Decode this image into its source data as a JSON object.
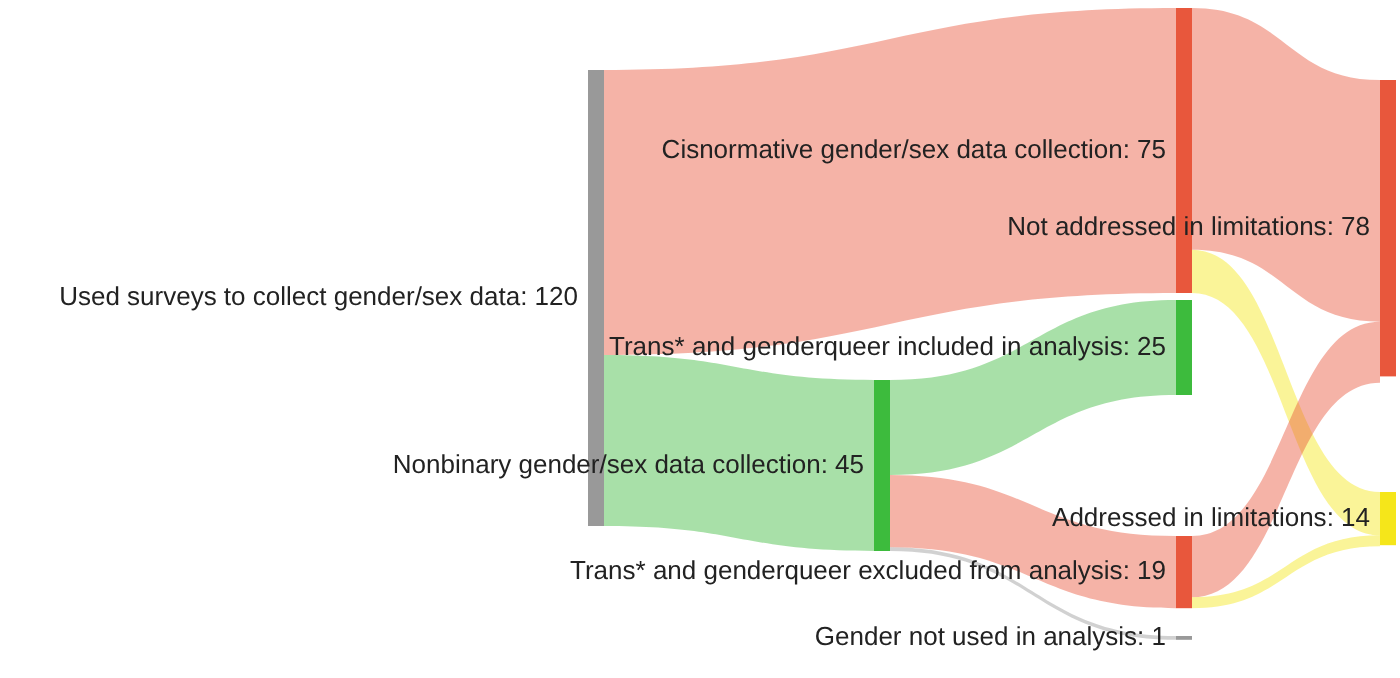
{
  "chart_data": {
    "type": "other",
    "categories": [
      "Used surveys to collect gender/sex data",
      "Cisnormative gender/sex data collection",
      "Nonbinary gender/sex data collection",
      "Trans* and genderqueer included in analysis",
      "Trans* and genderqueer excluded from analysis",
      "Gender not used in analysis",
      "Not addressed in limitations",
      "Addressed in limitations"
    ],
    "values": [
      120,
      75,
      45,
      25,
      19,
      1,
      78,
      14
    ],
    "value_labels": [
      ": 120",
      ": 75",
      ": 45",
      ": 25",
      ": 19",
      ": 1",
      ": 78",
      ": 14"
    ],
    "colors": [
      "#999999",
      "#e8573c",
      "#3dbb3d",
      "#3dbb3d",
      "#e8573c",
      "#999999",
      "#e8573c",
      "#f5e61a"
    ]
  }
}
